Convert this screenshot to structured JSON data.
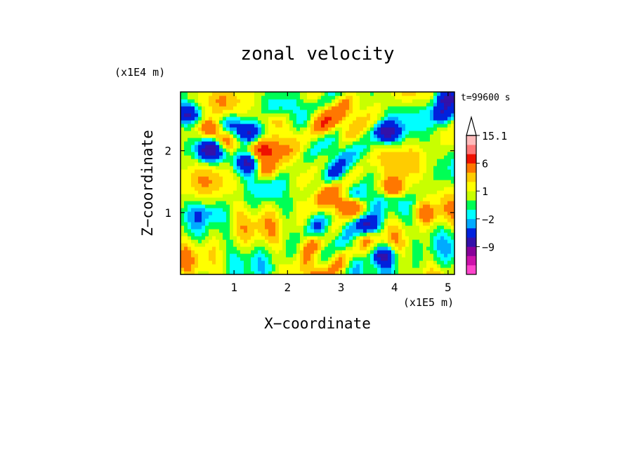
{
  "chart_data": {
    "type": "heatmap",
    "title": "zonal velocity",
    "xlabel": "X−coordinate",
    "ylabel": "Z−coordinate",
    "x_unit_label": "(x1E5 m)",
    "y_unit_label": "(x1E4 m)",
    "time_label": "t=99600 s",
    "xlim": [
      0,
      5.12
    ],
    "ylim": [
      0,
      2.95
    ],
    "x_ticks": [
      1,
      2,
      3,
      4,
      5
    ],
    "y_ticks": [
      1,
      2
    ],
    "colorbar": {
      "labels": [
        "15.1",
        "6",
        "1",
        "−2",
        "−9"
      ],
      "label_values": [
        15.1,
        6,
        1,
        -2,
        -9
      ],
      "levels": [
        -15,
        -12,
        -9,
        -6,
        -3,
        -2,
        -1,
        0,
        1,
        2,
        3,
        6,
        9,
        12,
        15.1
      ],
      "colors": [
        "#ff44cc",
        "#cc11aa",
        "#880099",
        "#3311aa",
        "#0022dd",
        "#00aaff",
        "#00ffff",
        "#00ff55",
        "#c8ff00",
        "#ffff00",
        "#ffcc00",
        "#ff7700",
        "#ee1100",
        "#ff7777",
        "#ffbbbb"
      ],
      "extend": "max"
    },
    "features": [
      {
        "x": 0.15,
        "z": 2.6,
        "u": -7
      },
      {
        "x": 0.55,
        "z": 2.35,
        "u": 6
      },
      {
        "x": 0.55,
        "z": 2.0,
        "u": -8
      },
      {
        "x": 0.85,
        "z": 2.15,
        "u": 5
      },
      {
        "x": 1.3,
        "z": 2.3,
        "u": -7
      },
      {
        "x": 1.25,
        "z": 1.8,
        "u": -8
      },
      {
        "x": 1.55,
        "z": 2.0,
        "u": 5
      },
      {
        "x": 0.9,
        "z": 2.45,
        "u": -4
      },
      {
        "x": 1.6,
        "z": 1.7,
        "u": 4
      },
      {
        "x": 4.0,
        "z": 1.4,
        "u": 6
      },
      {
        "x": 3.5,
        "z": 0.8,
        "u": -8
      },
      {
        "x": 3.85,
        "z": 2.3,
        "u": -8
      },
      {
        "x": 4.9,
        "z": 2.6,
        "u": -6
      },
      {
        "x": 5.0,
        "z": 2.85,
        "u": -8
      },
      {
        "x": 2.7,
        "z": 2.45,
        "u": 4
      },
      {
        "x": 3.8,
        "z": 0.3,
        "u": -8
      },
      {
        "x": 2.5,
        "z": 0.5,
        "u": 4
      },
      {
        "x": 3.1,
        "z": 1.1,
        "u": 5
      },
      {
        "x": 4.6,
        "z": 1.0,
        "u": 3
      },
      {
        "x": 2.9,
        "z": 1.6,
        "u": -3
      },
      {
        "x": 3.3,
        "z": 1.3,
        "u": -3
      },
      {
        "x": 0.5,
        "z": 1.0,
        "u": -2
      },
      {
        "x": 1.8,
        "z": 2.5,
        "u": 3
      }
    ]
  }
}
